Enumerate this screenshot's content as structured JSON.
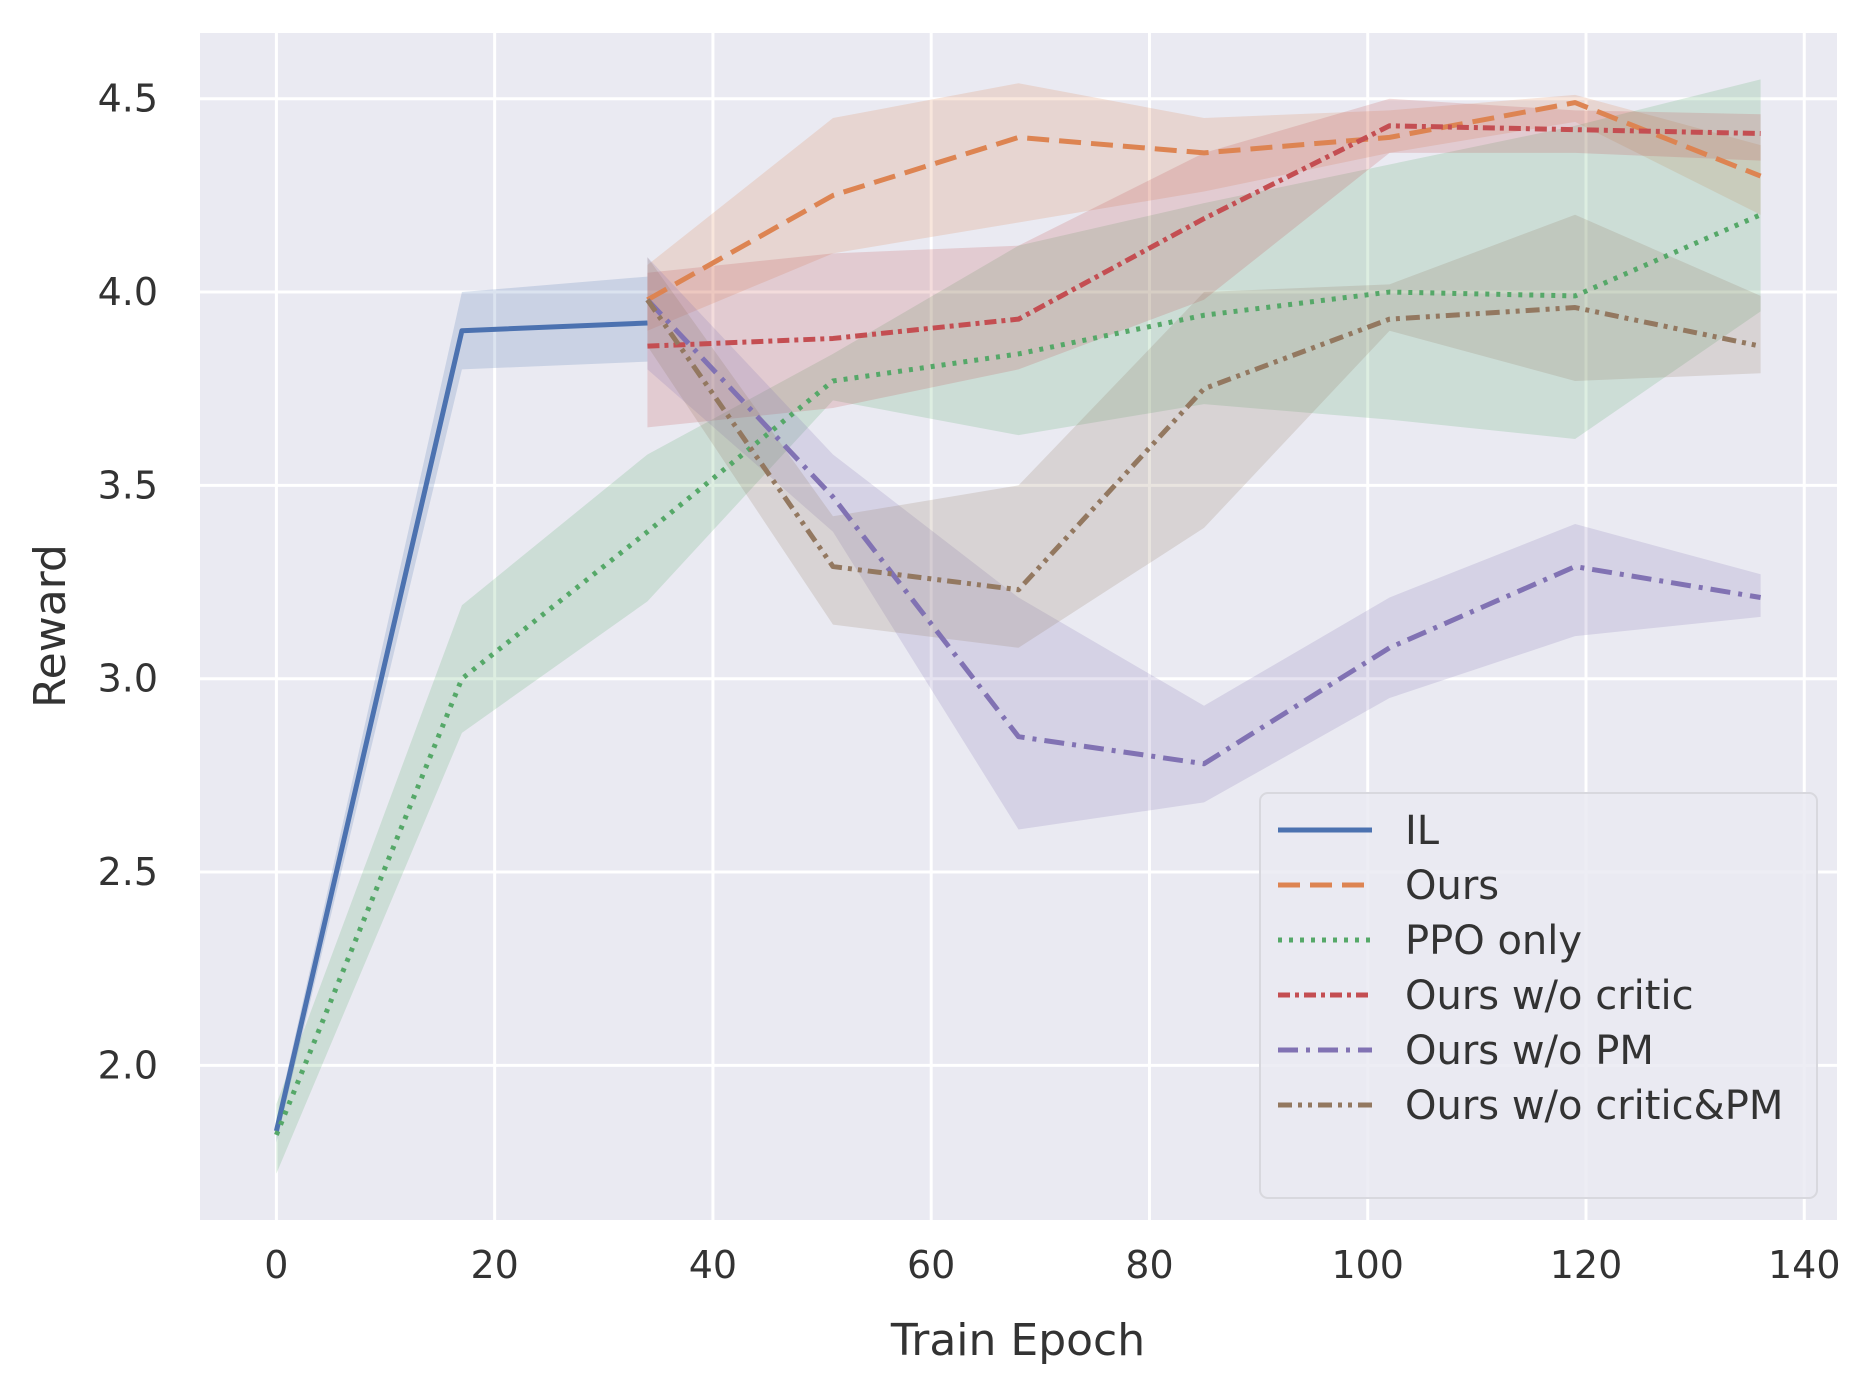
{
  "chart_data": {
    "type": "line",
    "title": "",
    "xlabel": "Train Epoch",
    "ylabel": "Reward",
    "xlim": [
      -7,
      143
    ],
    "ylim": [
      1.6,
      4.67
    ],
    "xticks": [
      0,
      20,
      40,
      60,
      80,
      100,
      120,
      140
    ],
    "yticks": [
      2.0,
      2.5,
      3.0,
      3.5,
      4.0,
      4.5
    ],
    "xtick_labels": [
      "0",
      "20",
      "40",
      "60",
      "80",
      "100",
      "120",
      "140"
    ],
    "ytick_labels": [
      "2.0",
      "2.5",
      "3.0",
      "3.5",
      "4.0",
      "4.5"
    ],
    "grid": true,
    "legend_position": "lower-right",
    "series": [
      {
        "name": "IL",
        "color": "#4c72b0",
        "dash": "solid",
        "x": [
          0,
          17,
          34
        ],
        "y": [
          1.83,
          3.9,
          3.92
        ],
        "y_low": [
          1.8,
          3.8,
          3.82
        ],
        "y_high": [
          1.86,
          4.0,
          4.04
        ]
      },
      {
        "name": "Ours",
        "color": "#dd8452",
        "dash": "dashed",
        "x": [
          34,
          51,
          68,
          85,
          102,
          119,
          136
        ],
        "y": [
          3.98,
          4.25,
          4.4,
          4.36,
          4.4,
          4.49,
          4.3
        ],
        "y_low": [
          3.9,
          4.1,
          4.18,
          4.26,
          4.36,
          4.44,
          4.2
        ],
        "y_high": [
          4.07,
          4.45,
          4.54,
          4.45,
          4.47,
          4.51,
          4.38
        ]
      },
      {
        "name": "PPO only",
        "color": "#55a868",
        "dash": "dotted",
        "x": [
          0,
          17,
          34,
          51,
          68,
          85,
          102,
          119,
          136
        ],
        "y": [
          1.82,
          3.0,
          3.38,
          3.77,
          3.84,
          3.94,
          4.0,
          3.99,
          4.2
        ],
        "y_low": [
          1.72,
          2.86,
          3.2,
          3.72,
          3.63,
          3.71,
          3.67,
          3.62,
          3.95
        ],
        "y_high": [
          1.9,
          3.19,
          3.58,
          3.84,
          4.12,
          4.23,
          4.33,
          4.43,
          4.55
        ]
      },
      {
        "name": "Ours w/o critic",
        "color": "#c44e52",
        "dash": "dashdot-short",
        "x": [
          34,
          51,
          68,
          85,
          102,
          119,
          136
        ],
        "y": [
          3.86,
          3.88,
          3.93,
          4.19,
          4.43,
          4.42,
          4.41
        ],
        "y_low": [
          3.65,
          3.7,
          3.8,
          3.98,
          4.36,
          4.36,
          4.34
        ],
        "y_high": [
          4.05,
          4.1,
          4.12,
          4.36,
          4.5,
          4.47,
          4.46
        ]
      },
      {
        "name": "Ours w/o PM",
        "color": "#8172b3",
        "dash": "dashdot",
        "x": [
          34,
          51,
          68,
          85,
          102,
          119,
          136
        ],
        "y": [
          3.98,
          3.47,
          2.85,
          2.78,
          3.08,
          3.29,
          3.21
        ],
        "y_low": [
          3.8,
          3.38,
          2.61,
          2.68,
          2.95,
          3.11,
          3.16
        ],
        "y_high": [
          4.09,
          3.58,
          3.21,
          2.93,
          3.21,
          3.4,
          3.27
        ]
      },
      {
        "name": "Ours w/o critic&PM",
        "color": "#937860",
        "dash": "dashdotdot",
        "x": [
          34,
          51,
          68,
          85,
          102,
          119,
          136
        ],
        "y": [
          3.98,
          3.29,
          3.23,
          3.75,
          3.93,
          3.96,
          3.86
        ],
        "y_low": [
          3.86,
          3.14,
          3.08,
          3.39,
          3.9,
          3.77,
          3.79
        ],
        "y_high": [
          4.09,
          3.42,
          3.5,
          4.0,
          4.02,
          4.2,
          3.99
        ]
      }
    ]
  }
}
